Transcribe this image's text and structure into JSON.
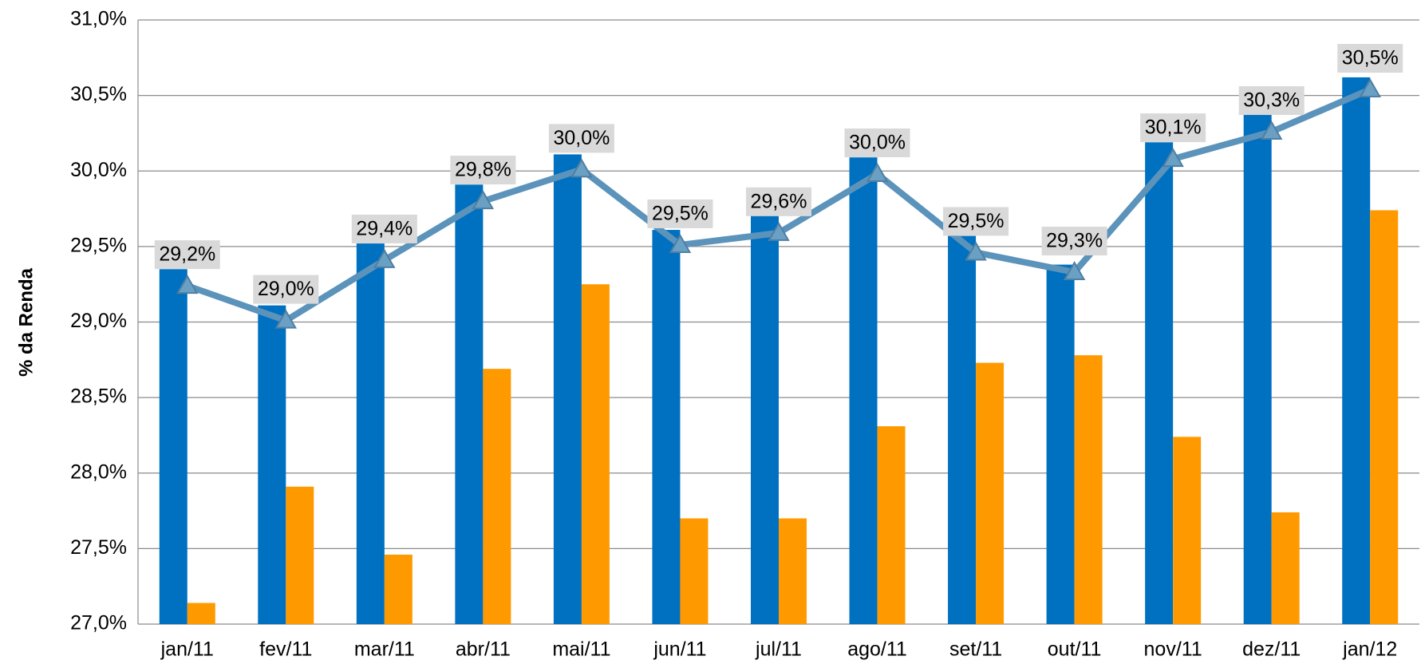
{
  "chart_data": {
    "type": "bar_line",
    "y_label": "% da Renda",
    "categories": [
      "jan/11",
      "fev/11",
      "mar/11",
      "abr/11",
      "mai/11",
      "jun/11",
      "jul/11",
      "ago/11",
      "set/11",
      "out/11",
      "nov/11",
      "dez/11",
      "jan/12"
    ],
    "series": [
      {
        "type": "bar",
        "color": "#0070c0",
        "values": [
          29.35,
          29.11,
          29.52,
          29.91,
          30.11,
          29.61,
          29.71,
          30.09,
          29.57,
          29.38,
          30.19,
          30.39,
          30.62
        ]
      },
      {
        "type": "bar",
        "color": "#ff9900",
        "values": [
          27.14,
          27.91,
          27.46,
          28.69,
          29.25,
          27.7,
          27.7,
          28.31,
          28.73,
          28.78,
          28.24,
          27.74,
          29.74
        ]
      },
      {
        "type": "line",
        "color": "#5b93bb",
        "values": [
          29.24,
          29.01,
          29.41,
          29.8,
          30.01,
          29.51,
          29.59,
          29.98,
          29.46,
          29.33,
          30.08,
          30.26,
          30.54
        ],
        "value_labels": [
          "29,2%",
          "29,0%",
          "29,4%",
          "29,8%",
          "30,0%",
          "29,5%",
          "29,6%",
          "30,0%",
          "29,5%",
          "29,3%",
          "30,1%",
          "30,3%",
          "30,5%"
        ]
      }
    ],
    "ylim": [
      27.0,
      31.0
    ],
    "yticks": [
      {
        "value": 27.0,
        "label": "27,0%"
      },
      {
        "value": 27.5,
        "label": "27,5%"
      },
      {
        "value": 28.0,
        "label": "28,0%"
      },
      {
        "value": 28.5,
        "label": "28,5%"
      },
      {
        "value": 29.0,
        "label": "29,0%"
      },
      {
        "value": 29.5,
        "label": "29,5%"
      },
      {
        "value": 30.0,
        "label": "30,0%"
      },
      {
        "value": 30.5,
        "label": "30,5%"
      },
      {
        "value": 31.0,
        "label": "31,0%"
      }
    ],
    "grid": true
  }
}
